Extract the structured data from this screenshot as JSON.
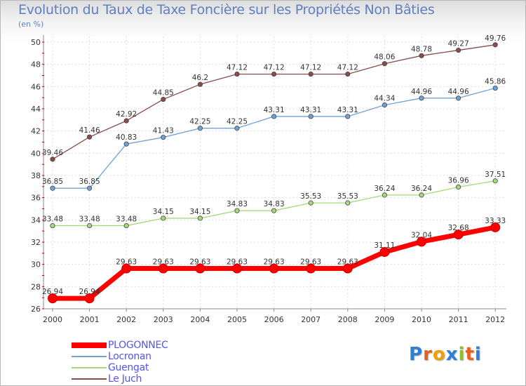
{
  "chart_data": {
    "type": "line",
    "title": "Evolution du Taux de Taxe Foncière sur les Propriétés Non Bâties",
    "subtitle": "(en %)",
    "xlabel": "",
    "ylabel": "(en %)",
    "x": [
      "2000",
      "2001",
      "2002",
      "2003",
      "2004",
      "2005",
      "2006",
      "2007",
      "2008",
      "2009",
      "2010",
      "2011",
      "2012"
    ],
    "ylim": [
      26,
      50
    ],
    "yticks": [
      "26",
      "28",
      "30",
      "32",
      "34",
      "36",
      "38",
      "40",
      "42",
      "44",
      "46",
      "48",
      "50"
    ],
    "grid": true,
    "series": [
      {
        "name": "PLOGONNEC",
        "color": "#ff0000",
        "values": [
          26.94,
          26.94,
          29.63,
          29.63,
          29.63,
          29.63,
          29.63,
          29.63,
          29.63,
          31.11,
          32.04,
          32.68,
          33.33
        ],
        "labels": [
          "26.94",
          "26.94",
          "29.63",
          "29.63",
          "29.63",
          "29.63",
          "29.63",
          "29.63",
          "29.63",
          "31.11",
          "32.04",
          "32.68",
          "33.33"
        ]
      },
      {
        "name": "Locronan",
        "color": "#6fa2d6",
        "values": [
          36.85,
          36.85,
          40.83,
          41.43,
          42.25,
          42.25,
          43.31,
          43.31,
          43.31,
          44.34,
          44.96,
          44.96,
          45.86
        ],
        "labels": [
          "36.85",
          "36.85",
          "40.83",
          "41.43",
          "42.25",
          "42.25",
          "43.31",
          "43.31",
          "43.31",
          "44.34",
          "44.96",
          "44.96",
          "45.86"
        ]
      },
      {
        "name": "Guengat",
        "color": "#a5d87a",
        "values": [
          33.48,
          33.48,
          33.48,
          34.15,
          34.15,
          34.83,
          34.83,
          35.53,
          35.53,
          36.24,
          36.24,
          36.96,
          37.51
        ],
        "labels": [
          "33.48",
          "33.48",
          "33.48",
          "34.15",
          "34.15",
          "34.83",
          "34.83",
          "35.53",
          "35.53",
          "36.24",
          "36.24",
          "36.96",
          "37.51"
        ]
      },
      {
        "name": "Le Juch",
        "color": "#8c4a4a",
        "values": [
          39.46,
          41.46,
          42.92,
          44.85,
          46.2,
          47.12,
          47.12,
          47.12,
          47.12,
          48.06,
          48.78,
          49.27,
          49.76
        ],
        "labels": [
          "39.46",
          "41.46",
          "42.92",
          "44.85",
          "46.2",
          "47.12",
          "47.12",
          "47.12",
          "47.12",
          "48.06",
          "48.78",
          "49.27",
          "49.76"
        ]
      }
    ],
    "legend": "bottom-left"
  },
  "logo": {
    "letters": [
      "P",
      "r",
      "o",
      "x",
      "i",
      "t",
      "i"
    ]
  }
}
